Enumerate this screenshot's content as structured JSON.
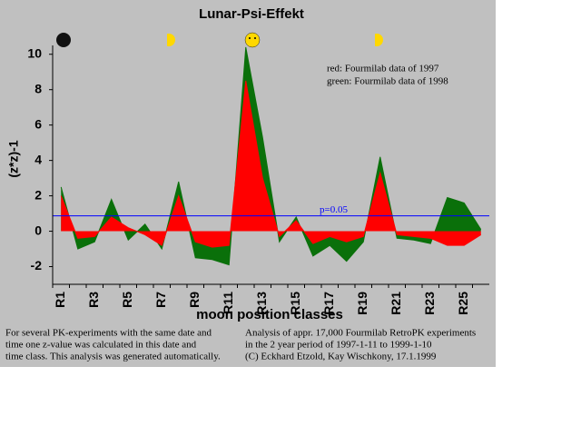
{
  "chart_data": {
    "type": "area",
    "title": "Lunar-Psi-Effekt",
    "ylabel": "(z*z)-1",
    "xlabel": "moon position classes",
    "categories": [
      "R1",
      null,
      "R3",
      null,
      "R5",
      null,
      "R7",
      null,
      "R9",
      null,
      "R11",
      null,
      "R13",
      null,
      "R15",
      null,
      "R17",
      null,
      "R19",
      null,
      "R21",
      null,
      "R23",
      null,
      "R25",
      null
    ],
    "series": [
      {
        "name": "green: Fourmilab data of 1998",
        "color": "#0a700a",
        "values": [
          2.5,
          -1.0,
          -0.6,
          1.8,
          -0.5,
          0.4,
          -1.0,
          2.8,
          -1.5,
          -1.6,
          -1.9,
          10.4,
          5.3,
          -0.6,
          0.8,
          -1.4,
          -0.8,
          -1.7,
          -0.6,
          4.2,
          -0.4,
          -0.5,
          -0.7,
          1.9,
          1.6,
          0.1
        ]
      },
      {
        "name": "red: Fourmilab data of 1997",
        "color": "#ff0000",
        "values": [
          2.0,
          -0.4,
          -0.3,
          0.8,
          0.2,
          -0.2,
          -0.8,
          2.0,
          -0.6,
          -0.9,
          -0.8,
          8.5,
          3.0,
          -0.3,
          0.6,
          -0.7,
          -0.3,
          -0.6,
          -0.3,
          3.3,
          -0.2,
          -0.3,
          -0.4,
          -0.8,
          -0.8,
          -0.2
        ]
      }
    ],
    "ylim": [
      -3,
      10.5
    ],
    "yticks": [
      -2,
      0,
      2,
      4,
      6,
      8,
      10
    ],
    "threshold": {
      "value": 0.87,
      "label": "p=0.05",
      "color": "#0000ff"
    }
  },
  "footer": {
    "left": [
      "For several PK-experiments with the same date and",
      "time one z-value was calculated in this date and",
      "time class. This analysis was generated automatically."
    ],
    "right": [
      "Analysis of appr. 17,000 Fourmilab RetroPK experiments",
      "in the 2 year period of 1997-1-11 to 1999-1-10",
      "(C) Eckhard Etzold, Kay Wischkony, 17.1.1999"
    ]
  }
}
